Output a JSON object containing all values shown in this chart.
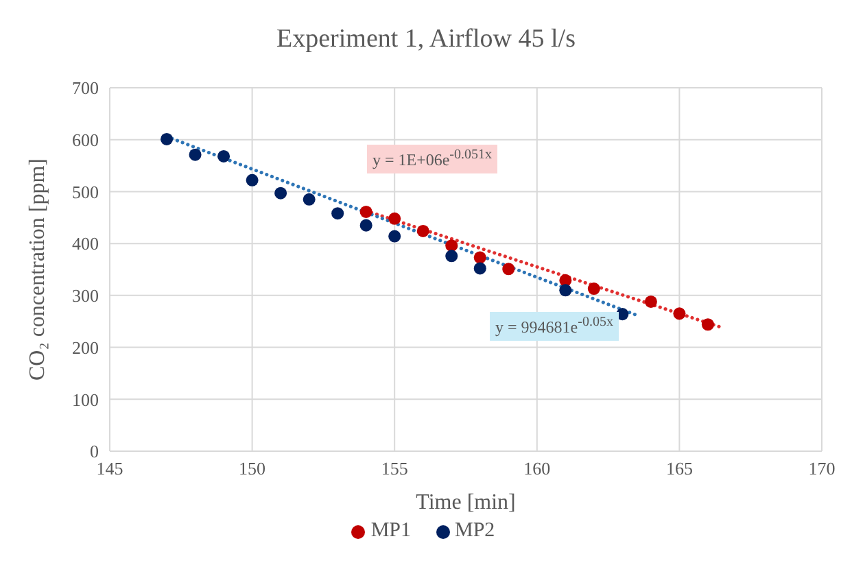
{
  "chart_data": {
    "type": "scatter",
    "title": "Experiment 1, Airflow 45 l/s",
    "xlabel": "Time [min]",
    "ylabel": "CO₂ concentration [ppm]",
    "xlim": [
      145,
      170
    ],
    "xticks": [
      145,
      150,
      155,
      160,
      165,
      170
    ],
    "ylim": [
      0,
      700
    ],
    "yticks": [
      0,
      100,
      200,
      300,
      400,
      500,
      600,
      700
    ],
    "grid": true,
    "legend": "bottom",
    "marker": "circle",
    "series": [
      {
        "name": "MP1",
        "color": "#c00000",
        "x": [
          154,
          155,
          156,
          157,
          158,
          159,
          161,
          162,
          164,
          165,
          166
        ],
        "values": [
          461,
          448,
          424,
          396,
          373,
          351,
          329,
          313,
          288,
          265,
          244
        ]
      },
      {
        "name": "MP2",
        "color": "#002060",
        "x": [
          147,
          148,
          149,
          150,
          151,
          152,
          153,
          154,
          155,
          157,
          158,
          161,
          163
        ],
        "values": [
          601,
          571,
          568,
          522,
          497,
          485,
          458,
          435,
          414,
          376,
          352,
          310,
          264
        ]
      },
      {
        "type": "line",
        "color": "#e03030",
        "line_style": "dotted",
        "marker": "none",
        "x": [
          154,
          166.5
        ],
        "values": [
          463,
          238
        ]
      },
      {
        "type": "line",
        "color": "#2e75b6",
        "line_style": "dotted",
        "marker": "none",
        "x": [
          147,
          163.5
        ],
        "values": [
          606,
          262
        ]
      }
    ],
    "annotations": [
      "y = 1E+06e$^{-0.051x}$",
      "y = 994681e$^{-0.05x}$"
    ]
  }
}
